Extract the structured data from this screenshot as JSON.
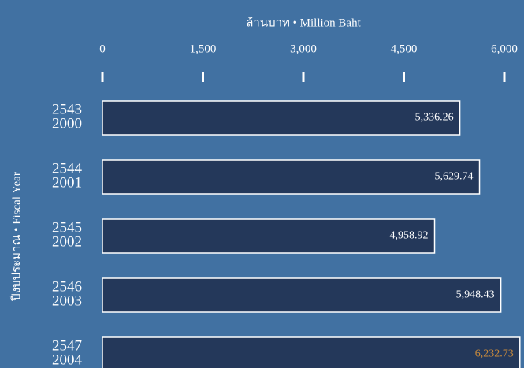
{
  "chart_data": {
    "type": "barh",
    "xlabel": "ล้านบาท • Million Baht",
    "ylabel": "ปีงบประมาณ • Fiscal Year",
    "categories": [
      "2543\n2000",
      "2544\n2001",
      "2545\n2002",
      "2546\n2003",
      "2547\n2004"
    ],
    "values": [
      5336.26,
      5629.74,
      4958.92,
      5948.43,
      6232.73
    ],
    "value_labels": [
      "5,336.26",
      "5,629.74",
      "4,958.92",
      "5,948.43",
      "6,232.73"
    ],
    "value_label_colors": [
      "#ffffff",
      "#ffffff",
      "#ffffff",
      "#ffffff",
      "#c98a3c"
    ],
    "color": "#24385a",
    "xlim": [
      0,
      6000
    ],
    "xticks": [
      0,
      {
        "value": 1500,
        "label": "1,500"
      },
      {
        "value": 3000,
        "label": "3,000"
      },
      {
        "value": 4500,
        "label": "4,500"
      },
      {
        "value": 6000,
        "label": "6,000"
      }
    ]
  }
}
